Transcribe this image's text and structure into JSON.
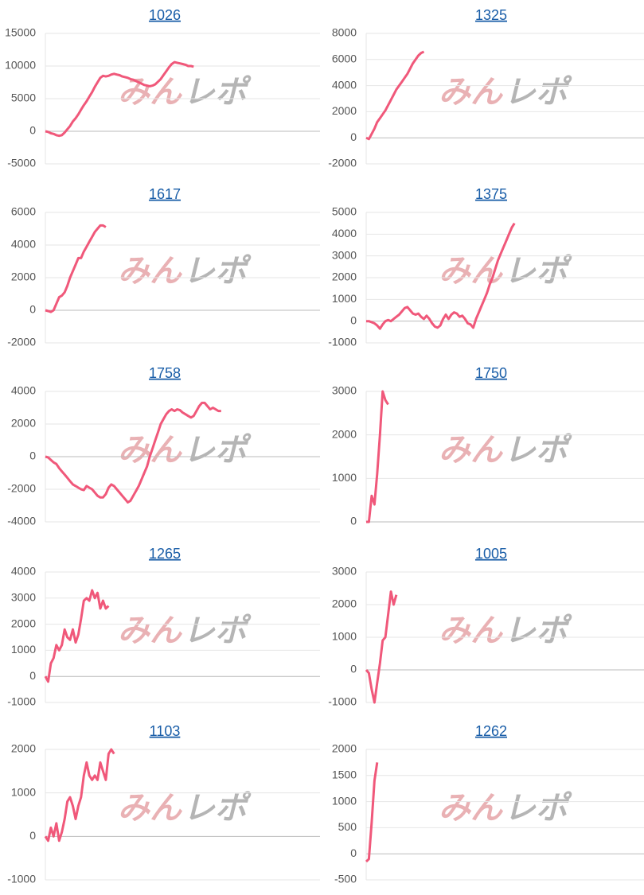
{
  "chart_data": [
    {
      "type": "line",
      "title": "1026",
      "color": "#f0587a",
      "ylim": [
        -5000,
        15000
      ],
      "yticks": [
        -5000,
        0,
        5000,
        10000,
        15000
      ],
      "values": [
        0,
        -100,
        -300,
        -400,
        -600,
        -700,
        -600,
        -200,
        300,
        800,
        1500,
        2000,
        2600,
        3300,
        4000,
        4600,
        5300,
        6000,
        6800,
        7500,
        8200,
        8500,
        8400,
        8500,
        8700,
        8800,
        8700,
        8600,
        8400,
        8300,
        8200,
        8000,
        7900,
        7700,
        7500,
        7300,
        7100,
        7000,
        6900,
        7000,
        7200,
        7600,
        8000,
        8600,
        9200,
        9800,
        10300,
        10600,
        10500,
        10400,
        10300,
        10200,
        10000,
        10000,
        9900
      ]
    },
    {
      "type": "line",
      "title": "1325",
      "color": "#f0587a",
      "ylim": [
        -2000,
        8000
      ],
      "yticks": [
        -2000,
        0,
        2000,
        4000,
        6000,
        8000
      ],
      "values": [
        0,
        -100,
        300,
        700,
        1200,
        1500,
        1800,
        2100,
        2500,
        2900,
        3300,
        3700,
        4000,
        4300,
        4600,
        4900,
        5300,
        5700,
        6000,
        6300,
        6500,
        6600
      ]
    },
    {
      "type": "line",
      "title": "1617",
      "color": "#f0587a",
      "ylim": [
        -2000,
        6000
      ],
      "yticks": [
        -2000,
        0,
        2000,
        4000,
        6000
      ],
      "values": [
        0,
        -50,
        -100,
        0,
        400,
        800,
        900,
        1100,
        1500,
        2000,
        2400,
        2800,
        3200,
        3200,
        3600,
        3900,
        4200,
        4500,
        4800,
        5000,
        5200,
        5200,
        5100
      ]
    },
    {
      "type": "line",
      "title": "1375",
      "color": "#f0587a",
      "ylim": [
        -1000,
        5000
      ],
      "yticks": [
        -1000,
        0,
        1000,
        2000,
        3000,
        4000,
        5000
      ],
      "values": [
        0,
        0,
        -50,
        -100,
        -200,
        -350,
        -150,
        0,
        50,
        0,
        100,
        200,
        300,
        450,
        600,
        650,
        500,
        350,
        300,
        350,
        200,
        100,
        250,
        100,
        -100,
        -250,
        -300,
        -200,
        100,
        300,
        100,
        300,
        400,
        350,
        200,
        250,
        100,
        -100,
        -150,
        -300,
        100,
        400,
        700,
        1000,
        1300,
        1700,
        2000,
        2400,
        2800,
        3100,
        3400,
        3700,
        4000,
        4300,
        4500
      ]
    },
    {
      "type": "line",
      "title": "1758",
      "color": "#f0587a",
      "ylim": [
        -4000,
        4000
      ],
      "yticks": [
        -4000,
        -2000,
        0,
        2000,
        4000
      ],
      "values": [
        0,
        -50,
        -200,
        -350,
        -450,
        -700,
        -900,
        -1100,
        -1300,
        -1500,
        -1700,
        -1800,
        -1900,
        -2000,
        -2050,
        -1800,
        -1900,
        -2000,
        -2200,
        -2400,
        -2500,
        -2500,
        -2300,
        -1900,
        -1700,
        -1800,
        -2000,
        -2200,
        -2400,
        -2600,
        -2800,
        -2700,
        -2400,
        -2100,
        -1800,
        -1400,
        -1000,
        -600,
        0,
        500,
        1000,
        1500,
        2000,
        2300,
        2600,
        2800,
        2900,
        2800,
        2900,
        2850,
        2700,
        2600,
        2500,
        2400,
        2500,
        2800,
        3100,
        3300,
        3300,
        3100,
        2900,
        3000,
        2900,
        2800,
        2800
      ]
    },
    {
      "type": "line",
      "title": "1750",
      "color": "#f0587a",
      "ylim": [
        0,
        3000
      ],
      "yticks": [
        0,
        1000,
        2000,
        3000
      ],
      "values": [
        0,
        0,
        600,
        400,
        1100,
        2000,
        3000,
        2800,
        2700
      ]
    },
    {
      "type": "line",
      "title": "1265",
      "color": "#f0587a",
      "ylim": [
        -1000,
        4000
      ],
      "yticks": [
        -1000,
        0,
        1000,
        2000,
        3000,
        4000
      ],
      "values": [
        0,
        -200,
        500,
        700,
        1200,
        1000,
        1200,
        1800,
        1500,
        1400,
        1800,
        1300,
        1600,
        2200,
        2900,
        3000,
        2900,
        3300,
        3000,
        3200,
        2600,
        2900,
        2600,
        2700
      ]
    },
    {
      "type": "line",
      "title": "1005",
      "color": "#f0587a",
      "ylim": [
        -1000,
        3000
      ],
      "yticks": [
        -1000,
        0,
        1000,
        2000,
        3000
      ],
      "values": [
        0,
        -100,
        -600,
        -1000,
        -400,
        200,
        900,
        1000,
        1700,
        2400,
        2000,
        2300
      ]
    },
    {
      "type": "line",
      "title": "1103",
      "color": "#f0587a",
      "ylim": [
        -1000,
        2000
      ],
      "yticks": [
        -1000,
        0,
        1000,
        2000
      ],
      "values": [
        0,
        -100,
        200,
        0,
        300,
        -100,
        100,
        400,
        800,
        900,
        700,
        400,
        700,
        900,
        1400,
        1700,
        1400,
        1300,
        1400,
        1300,
        1700,
        1500,
        1300,
        1900,
        2000,
        1900
      ]
    },
    {
      "type": "line",
      "title": "1262",
      "color": "#f0587a",
      "ylim": [
        -500,
        2000
      ],
      "yticks": [
        -500,
        0,
        500,
        1000,
        1500,
        2000
      ],
      "values": [
        -150,
        -100,
        600,
        1400,
        1750
      ]
    }
  ],
  "watermark": [
    "みん",
    "レポ"
  ]
}
